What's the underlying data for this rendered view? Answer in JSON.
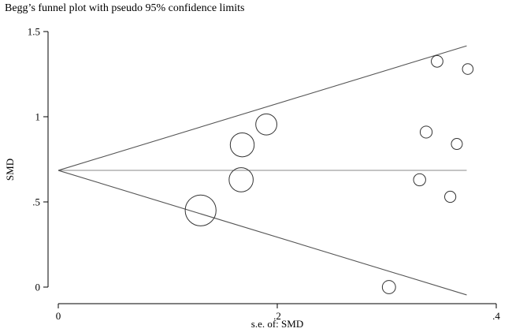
{
  "chart_data": {
    "type": "scatter",
    "title": "Begg’s funnel plot with pseudo 95% confidence limits",
    "xlabel": "s.e. of: SMD",
    "ylabel": "SMD",
    "xlim": [
      0,
      0.4
    ],
    "ylim": [
      0,
      1.5
    ],
    "x_ticks": [
      {
        "value": 0,
        "label": "0"
      },
      {
        "value": 0.2,
        "label": ".2"
      },
      {
        "value": 0.4,
        "label": ".4"
      }
    ],
    "y_ticks": [
      {
        "value": 0,
        "label": "0"
      },
      {
        "value": 0.5,
        "label": ".5"
      },
      {
        "value": 1,
        "label": "1"
      },
      {
        "value": 1.5,
        "label": "1.5"
      }
    ],
    "pooled_estimate": 0.685,
    "limit_max_se": 0.373,
    "confidence_z": 1.96,
    "grid": false,
    "points": [
      {
        "se": 0.13,
        "smd": 0.45
      },
      {
        "se": 0.167,
        "smd": 0.63
      },
      {
        "se": 0.168,
        "smd": 0.835
      },
      {
        "se": 0.19,
        "smd": 0.955
      },
      {
        "se": 0.302,
        "smd": 0.0
      },
      {
        "se": 0.33,
        "smd": 0.63
      },
      {
        "se": 0.336,
        "smd": 0.91
      },
      {
        "se": 0.346,
        "smd": 1.325
      },
      {
        "se": 0.358,
        "smd": 0.53
      },
      {
        "se": 0.364,
        "smd": 0.84
      },
      {
        "se": 0.374,
        "smd": 1.28
      }
    ]
  }
}
